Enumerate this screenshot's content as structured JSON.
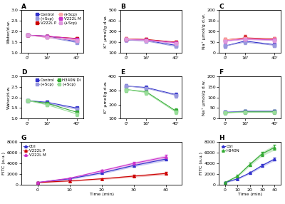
{
  "chart_data": [
    {
      "type": "line",
      "title": "A",
      "ylabel": "Water/d.w.",
      "x": [
        0,
        16,
        40
      ],
      "xlim": [
        -5,
        45
      ],
      "xticks": [
        {
          "value": 0,
          "label": "0'"
        },
        {
          "value": 16,
          "label": "16'"
        },
        {
          "value": 40,
          "label": "40'"
        }
      ],
      "ylim": [
        1.0,
        3.0
      ],
      "yticks": [
        {
          "value": 1.0,
          "label": "1.0"
        },
        1.5,
        {
          "value": 2.0,
          "label": "2.0"
        },
        2.5,
        {
          "value": 3.0,
          "label": "3.0"
        }
      ],
      "marker": "square",
      "legend": "upper right",
      "series": [
        {
          "name": "Control",
          "color": "#3333cc",
          "values": [
            1.83,
            1.78,
            1.52
          ],
          "errors": [
            0.05,
            0.06,
            0.04
          ]
        },
        {
          "name": "(+Scp)",
          "color": "#9999dd",
          "values": [
            1.83,
            1.73,
            1.48
          ],
          "errors": [
            0.05,
            0.06,
            0.05
          ]
        },
        {
          "name": "V222L P",
          "color": "#cc0000",
          "values": [
            1.83,
            1.77,
            1.67
          ],
          "errors": [
            0.05,
            0.05,
            0.05
          ]
        },
        {
          "name": "(+Scp)",
          "color": "#ffaaaa",
          "values": [
            1.83,
            1.72,
            1.6
          ],
          "errors": [
            0.05,
            0.05,
            0.05
          ]
        },
        {
          "name": "V222L M",
          "color": "#cc33cc",
          "values": [
            1.83,
            1.78,
            1.65
          ],
          "errors": [
            0.05,
            0.05,
            0.06
          ]
        },
        {
          "name": "(+Scp)",
          "color": "#dd99dd",
          "values": [
            1.83,
            1.72,
            1.58
          ],
          "errors": [
            0.05,
            0.05,
            0.06
          ]
        }
      ]
    },
    {
      "type": "line",
      "title": "B",
      "ylabel": "K⁺ μmol/g d.w.",
      "x": [
        0,
        16,
        40
      ],
      "xlim": [
        -5,
        45
      ],
      "xticks": [
        {
          "value": 0,
          "label": "0'"
        },
        {
          "value": 16,
          "label": "16'"
        },
        {
          "value": 40,
          "label": "40'"
        }
      ],
      "ylim": [
        100,
        500
      ],
      "yticks": [
        100,
        200,
        300,
        400,
        500
      ],
      "marker": "square",
      "series": [
        {
          "color": "#3333cc",
          "values": [
            220,
            215,
            170
          ],
          "errors": [
            15,
            15,
            15
          ]
        },
        {
          "color": "#9999dd",
          "values": [
            220,
            210,
            160
          ],
          "errors": [
            15,
            15,
            15
          ]
        },
        {
          "color": "#cc0000",
          "values": [
            230,
            225,
            200
          ],
          "errors": [
            15,
            15,
            15
          ]
        },
        {
          "color": "#ffaaaa",
          "values": [
            230,
            220,
            195
          ],
          "errors": [
            15,
            15,
            15
          ]
        },
        {
          "color": "#cc33cc",
          "values": [
            225,
            220,
            195
          ],
          "errors": [
            15,
            15,
            15
          ]
        },
        {
          "color": "#dd99dd",
          "values": [
            225,
            215,
            188
          ],
          "errors": [
            15,
            15,
            15
          ]
        }
      ]
    },
    {
      "type": "line",
      "title": "C",
      "ylabel": "Na⁺ μmol/g d.w.",
      "x": [
        0,
        16,
        40
      ],
      "xlim": [
        -5,
        45
      ],
      "xticks": [
        {
          "value": 0,
          "label": "0'"
        },
        {
          "value": 16,
          "label": "16'"
        },
        {
          "value": 40,
          "label": "40'"
        }
      ],
      "ylim": [
        0,
        200
      ],
      "yticks": [
        0,
        50,
        100,
        150,
        200
      ],
      "marker": "square",
      "series": [
        {
          "color": "#3333cc",
          "values": [
            32,
            55,
            38
          ],
          "errors": [
            8,
            10,
            8
          ]
        },
        {
          "color": "#9999dd",
          "values": [
            32,
            50,
            35
          ],
          "errors": [
            8,
            10,
            8
          ]
        },
        {
          "color": "#cc0000",
          "values": [
            60,
            70,
            65
          ],
          "errors": [
            10,
            12,
            10
          ]
        },
        {
          "color": "#ffaaaa",
          "values": [
            60,
            68,
            62
          ],
          "errors": [
            10,
            12,
            10
          ]
        },
        {
          "color": "#cc33cc",
          "values": [
            55,
            65,
            60
          ],
          "errors": [
            10,
            12,
            10
          ]
        },
        {
          "color": "#dd99dd",
          "values": [
            55,
            62,
            58
          ],
          "errors": [
            10,
            12,
            10
          ]
        }
      ]
    },
    {
      "type": "line",
      "title": "D",
      "ylabel": "Water/d.w.",
      "x": [
        0,
        16,
        40
      ],
      "xlim": [
        -5,
        45
      ],
      "xticks": [
        {
          "value": 0,
          "label": "0'"
        },
        {
          "value": 16,
          "label": "16'"
        },
        {
          "value": 40,
          "label": "40'"
        }
      ],
      "ylim": [
        1.0,
        3.0
      ],
      "yticks": [
        {
          "value": 1.0,
          "label": "1.0"
        },
        1.5,
        {
          "value": 2.0,
          "label": "2.0"
        },
        2.5,
        {
          "value": 3.0,
          "label": "3.0"
        }
      ],
      "marker": "square",
      "legend": "upper right",
      "series": [
        {
          "name": "Control",
          "color": "#3333cc",
          "values": [
            1.85,
            1.77,
            1.5
          ],
          "errors": [
            0.05,
            0.07,
            0.05
          ]
        },
        {
          "name": "(+Scp)",
          "color": "#9999dd",
          "values": [
            1.85,
            1.72,
            1.45
          ],
          "errors": [
            0.05,
            0.07,
            0.06
          ]
        },
        {
          "name": "H340N Di",
          "color": "#33aa33",
          "values": [
            1.85,
            1.72,
            1.3
          ],
          "errors": [
            0.05,
            0.07,
            0.08
          ]
        },
        {
          "name": "(+Scp)",
          "color": "#99dd99",
          "values": [
            1.85,
            1.65,
            1.22
          ],
          "errors": [
            0.05,
            0.07,
            0.09
          ]
        }
      ]
    },
    {
      "type": "line",
      "title": "E",
      "ylabel": "K⁺ μmol/g d.w.",
      "x": [
        0,
        16,
        40
      ],
      "xlim": [
        -5,
        45
      ],
      "xticks": [
        {
          "value": 0,
          "label": "0'"
        },
        {
          "value": 16,
          "label": "16'"
        },
        {
          "value": 40,
          "label": "40'"
        }
      ],
      "ylim": [
        100,
        400
      ],
      "yticks": [
        100,
        200,
        300,
        400
      ],
      "marker": "square",
      "series": [
        {
          "color": "#3333cc",
          "values": [
            330,
            320,
            270
          ],
          "errors": [
            15,
            15,
            15
          ]
        },
        {
          "color": "#9999dd",
          "values": [
            330,
            315,
            265
          ],
          "errors": [
            15,
            15,
            15
          ]
        },
        {
          "color": "#33aa33",
          "values": [
            305,
            290,
            155
          ],
          "errors": [
            15,
            15,
            15
          ]
        },
        {
          "color": "#99dd99",
          "values": [
            305,
            285,
            148
          ],
          "errors": [
            15,
            15,
            15
          ]
        }
      ]
    },
    {
      "type": "line",
      "title": "F",
      "ylabel": "Na⁺ μmol/g d.w.",
      "x": [
        0,
        16,
        40
      ],
      "xlim": [
        -5,
        45
      ],
      "xticks": [
        {
          "value": 0,
          "label": "0'"
        },
        {
          "value": 16,
          "label": "16'"
        },
        {
          "value": 40,
          "label": "40'"
        }
      ],
      "ylim": [
        0,
        200
      ],
      "yticks": [
        0,
        50,
        100,
        150,
        200
      ],
      "marker": "square",
      "series": [
        {
          "color": "#3333cc",
          "values": [
            30,
            35,
            35
          ],
          "errors": [
            8,
            8,
            8
          ]
        },
        {
          "color": "#9999dd",
          "values": [
            30,
            33,
            33
          ],
          "errors": [
            8,
            8,
            8
          ]
        },
        {
          "color": "#33aa33",
          "values": [
            28,
            32,
            32
          ],
          "errors": [
            8,
            8,
            8
          ]
        },
        {
          "color": "#99dd99",
          "values": [
            28,
            30,
            30
          ],
          "errors": [
            8,
            8,
            8
          ]
        }
      ]
    },
    {
      "type": "band",
      "title": "G",
      "xlabel": "Time (min)",
      "ylabel": "FITC (a.u.)",
      "x": [
        0,
        10,
        20,
        30,
        40
      ],
      "xlim": [
        -5,
        45
      ],
      "xticks": [
        0,
        10,
        20,
        30,
        40
      ],
      "ylim": [
        0,
        8000
      ],
      "yticks": [
        0,
        2000,
        4000,
        6000,
        8000
      ],
      "marker": "triangle",
      "legend": "upper left",
      "series": [
        {
          "name": "Ctrl",
          "color": "#3333cc",
          "values": [
            400,
            1100,
            2200,
            3600,
            4800
          ],
          "errors": [
            100,
            150,
            200,
            250,
            300
          ]
        },
        {
          "name": "V222L P",
          "color": "#cc0000",
          "values": [
            400,
            700,
            1100,
            1600,
            2100
          ],
          "errors": [
            100,
            120,
            150,
            200,
            250
          ]
        },
        {
          "name": "V222L M",
          "color": "#cc33cc",
          "values": [
            400,
            1200,
            2600,
            4000,
            5200
          ],
          "errors": [
            100,
            150,
            220,
            280,
            350
          ]
        }
      ]
    },
    {
      "type": "band",
      "title": "H",
      "xlabel": "Time (min)",
      "ylabel": "FITC (a.u.)",
      "x": [
        0,
        10,
        20,
        30,
        40
      ],
      "xlim": [
        -5,
        45
      ],
      "xticks": [
        0,
        10,
        20,
        30,
        40
      ],
      "ylim": [
        0,
        8000
      ],
      "yticks": [
        0,
        2000,
        4000,
        6000,
        8000
      ],
      "marker": "triangle",
      "legend": "upper left",
      "series": [
        {
          "name": "Ctrl",
          "color": "#3333cc",
          "values": [
            400,
            1100,
            2200,
            3600,
            4800
          ],
          "errors": [
            100,
            150,
            200,
            250,
            300
          ]
        },
        {
          "name": "H340N",
          "color": "#33aa33",
          "values": [
            400,
            1600,
            3800,
            5800,
            7000
          ],
          "errors": [
            100,
            200,
            300,
            400,
            500
          ]
        }
      ]
    }
  ]
}
